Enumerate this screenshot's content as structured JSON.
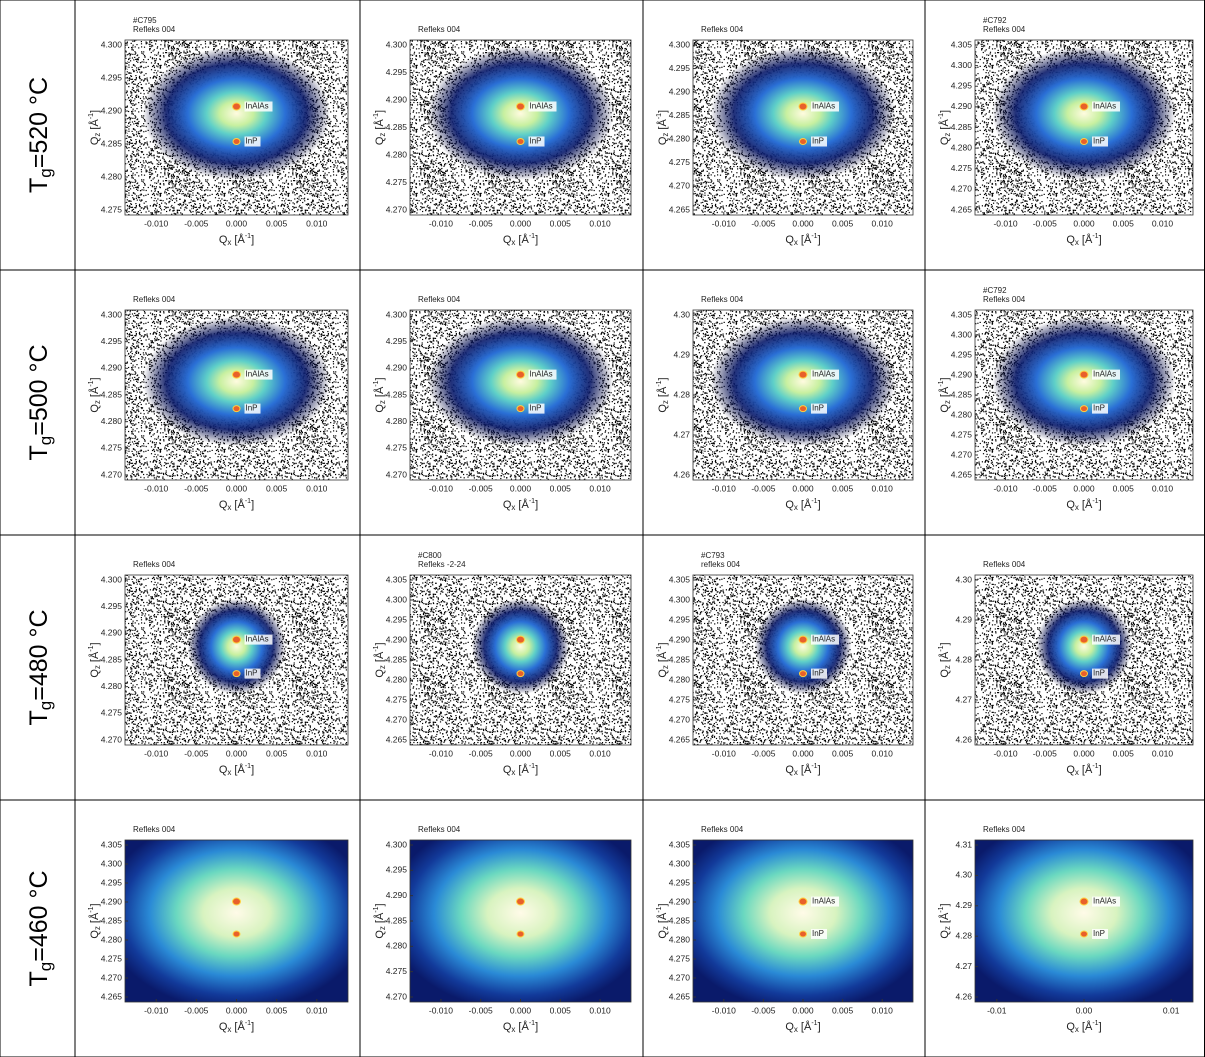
{
  "axes": {
    "x_label": {
      "symbol": "Q",
      "sub": "x",
      "unit": "[Å",
      "sup": "-1",
      "close": "]"
    },
    "y_label": {
      "symbol": "Q",
      "sub": "z",
      "unit": "[Å",
      "sup": "-1",
      "close": "]"
    }
  },
  "table": {
    "rows": [
      {
        "label": {
          "symbol": "T",
          "sub": "g",
          "rest": "=520 °C"
        },
        "cells": [
          {
            "header": [
              "#C795",
              "Refleks 004"
            ],
            "yticks": [
              "4.300",
              "4.295",
              "4.290",
              "4.285",
              "4.280",
              "4.275"
            ],
            "xticks": [
              "-0.010",
              "-0.005",
              "0.000",
              "0.005",
              "0.010"
            ],
            "peaks": [
              "InAlAs",
              "InP"
            ]
          },
          {
            "header": [
              "Refleks 004"
            ],
            "yticks": [
              "4.300",
              "4.295",
              "4.290",
              "4.285",
              "4.280",
              "4.275",
              "4.270"
            ],
            "xticks": [
              "-0.010",
              "-0.005",
              "0.000",
              "0.005",
              "0.010"
            ],
            "peaks": [
              "InAlAs",
              "InP"
            ]
          },
          {
            "header": [
              "Refleks 004"
            ],
            "yticks": [
              "4.300",
              "4.295",
              "4.290",
              "4.285",
              "4.280",
              "4.275",
              "4.270",
              "4.265"
            ],
            "xticks": [
              "-0.010",
              "-0.005",
              "0.000",
              "0.005",
              "0.010"
            ],
            "peaks": [
              "InAlAs",
              "InP"
            ]
          },
          {
            "header": [
              "#C792",
              "Refleks 004"
            ],
            "yticks": [
              "4.305",
              "4.300",
              "4.295",
              "4.290",
              "4.285",
              "4.280",
              "4.275",
              "4.270",
              "4.265"
            ],
            "xticks": [
              "-0.010",
              "-0.005",
              "0.000",
              "0.005",
              "0.010"
            ],
            "peaks": [
              "InAlAs",
              "InP"
            ]
          }
        ]
      },
      {
        "label": {
          "symbol": "T",
          "sub": "g",
          "rest": "=500 °C"
        },
        "cells": [
          {
            "header": [
              "Refleks 004"
            ],
            "yticks": [
              "4.300",
              "4.295",
              "4.290",
              "4.285",
              "4.280",
              "4.275",
              "4.270"
            ],
            "xticks": [
              "-0.010",
              "-0.005",
              "0.000",
              "0.005",
              "0.010"
            ],
            "peaks": [
              "InAlAs",
              "InP"
            ]
          },
          {
            "header": [
              "Refleks 004"
            ],
            "yticks": [
              "4.300",
              "4.295",
              "4.290",
              "4.285",
              "4.280",
              "4.275",
              "4.270"
            ],
            "xticks": [
              "-0.010",
              "-0.005",
              "0.000",
              "0.005",
              "0.010"
            ],
            "peaks": [
              "InAlAs",
              "InP"
            ]
          },
          {
            "header": [
              "Refleks 004"
            ],
            "yticks": [
              "4.30",
              "4.29",
              "4.28",
              "4.27",
              "4.26"
            ],
            "xticks": [
              "-0.010",
              "-0.005",
              "0.000",
              "0.005",
              "0.010"
            ],
            "peaks": [
              "InAlAs",
              "InP"
            ]
          },
          {
            "header": [
              "#C792",
              "Refleks 004"
            ],
            "yticks": [
              "4.305",
              "4.300",
              "4.295",
              "4.290",
              "4.285",
              "4.280",
              "4.275",
              "4.270",
              "4.265"
            ],
            "xticks": [
              "-0.010",
              "-0.005",
              "0.000",
              "0.005",
              "0.010"
            ],
            "peaks": [
              "InAlAs",
              "InP"
            ]
          }
        ]
      },
      {
        "label": {
          "symbol": "T",
          "sub": "g",
          "rest": "=480 °C"
        },
        "cells": [
          {
            "header": [
              "Refleks 004"
            ],
            "yticks": [
              "4.300",
              "4.295",
              "4.290",
              "4.285",
              "4.280",
              "4.275",
              "4.270"
            ],
            "xticks": [
              "-0.010",
              "-0.005",
              "0.000",
              "0.005",
              "0.010"
            ],
            "peaks": [
              "InAlAs",
              "InP"
            ]
          },
          {
            "header": [
              "#C800",
              "Refleks -2-24"
            ],
            "yticks": [
              "4.305",
              "4.300",
              "4.295",
              "4.290",
              "4.285",
              "4.280",
              "4.275",
              "4.270",
              "4.265"
            ],
            "xticks": [
              "-0.010",
              "-0.005",
              "0.000",
              "0.005",
              "0.010"
            ],
            "peaks": []
          },
          {
            "header": [
              "#C793",
              "refleks 004"
            ],
            "yticks": [
              "4.305",
              "4.300",
              "4.295",
              "4.290",
              "4.285",
              "4.280",
              "4.275",
              "4.270",
              "4.265"
            ],
            "xticks": [
              "-0.010",
              "-0.005",
              "0.000",
              "0.005",
              "0.010"
            ],
            "peaks": [
              "InAlAs",
              "InP"
            ]
          },
          {
            "header": [
              "Refleks 004"
            ],
            "yticks": [
              "4.30",
              "4.29",
              "4.28",
              "4.27",
              "4.26"
            ],
            "xticks": [
              "-0.010",
              "-0.005",
              "0.000",
              "0.005",
              "0.010"
            ],
            "peaks": [
              "InAlAs",
              "InP"
            ]
          }
        ]
      },
      {
        "label": {
          "symbol": "T",
          "sub": "g",
          "rest": "=460 °C"
        },
        "cells": [
          {
            "header": [
              "Refleks 004"
            ],
            "yticks": [
              "4.305",
              "4.300",
              "4.295",
              "4.290",
              "4.285",
              "4.280",
              "4.275",
              "4.270",
              "4.265"
            ],
            "xticks": [
              "-0.010",
              "-0.005",
              "0.000",
              "0.005",
              "0.010"
            ],
            "peaks": []
          },
          {
            "header": [
              "Refleks 004"
            ],
            "yticks": [
              "4.300",
              "4.295",
              "4.290",
              "4.285",
              "4.280",
              "4.275",
              "4.270"
            ],
            "xticks": [
              "-0.010",
              "-0.005",
              "0.000",
              "0.005",
              "0.010"
            ],
            "peaks": []
          },
          {
            "header": [
              "Refleks 004"
            ],
            "yticks": [
              "4.305",
              "4.300",
              "4.295",
              "4.290",
              "4.285",
              "4.280",
              "4.275",
              "4.270",
              "4.265"
            ],
            "xticks": [
              "-0.010",
              "-0.005",
              "0.000",
              "0.005",
              "0.010"
            ],
            "peaks": [
              "InAlAs",
              "InP"
            ]
          },
          {
            "header": [
              "Refleks 004"
            ],
            "yticks": [
              "4.31",
              "4.30",
              "4.29",
              "4.28",
              "4.27",
              "4.26"
            ],
            "xticks": [
              "-0.01",
              "0.00",
              "0.01"
            ],
            "peaks": [
              "InAlAs",
              "InP"
            ]
          }
        ]
      }
    ]
  }
}
